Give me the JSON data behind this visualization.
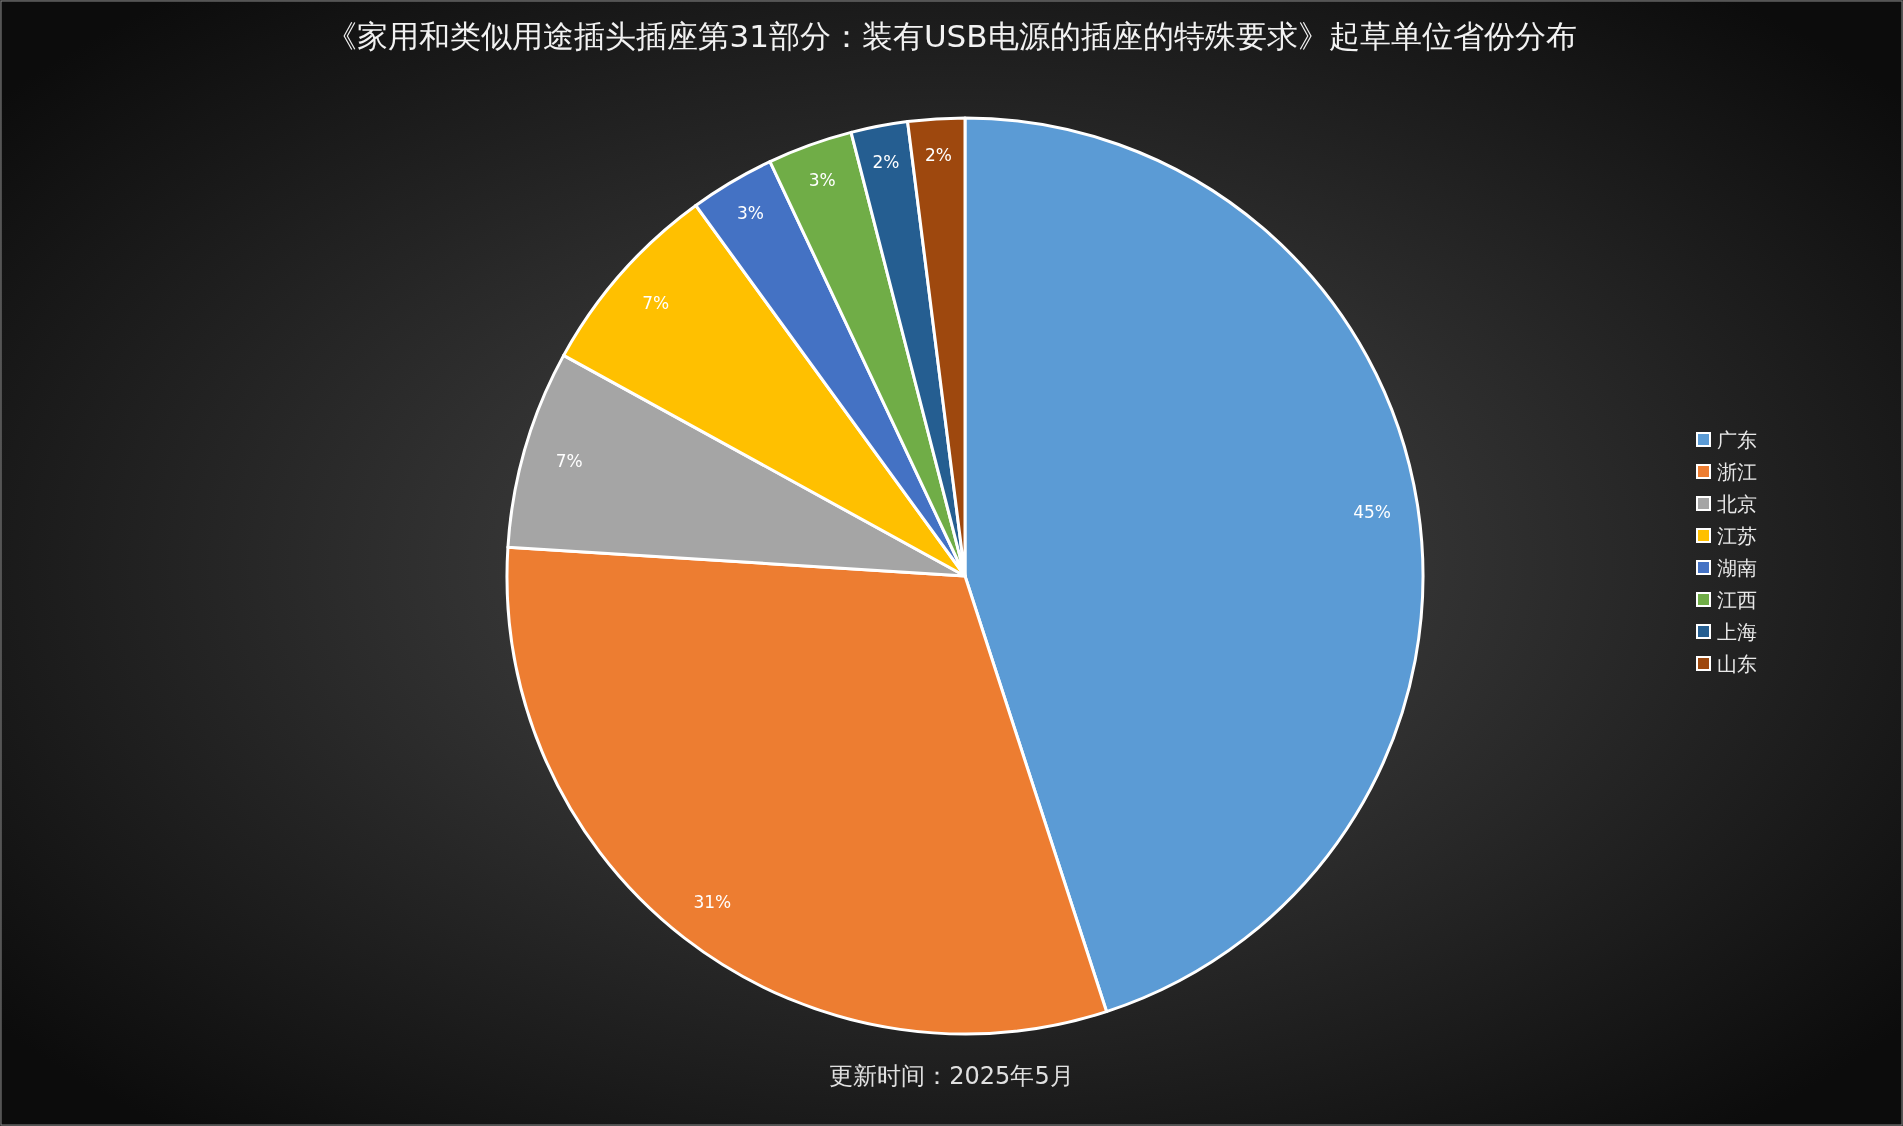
{
  "chart_data": {
    "type": "pie",
    "title": "《家用和类似用途插头插座第31部分：装有USB电源的插座的特殊要求》起草单位省份分布",
    "categories": [
      "广东",
      "浙江",
      "北京",
      "江苏",
      "湖南",
      "江西",
      "上海",
      "山东"
    ],
    "values": [
      45,
      31,
      7,
      7,
      3,
      3,
      2,
      2
    ],
    "colors": [
      "#5b9bd5",
      "#ed7d31",
      "#a5a5a5",
      "#ffc000",
      "#4472c4",
      "#70ad47",
      "#255e91",
      "#9e480e"
    ],
    "value_labels": [
      "45%",
      "31%",
      "7%",
      "7%",
      "3%",
      "3%",
      "2%",
      "2%"
    ],
    "legend": "right",
    "annotations": [
      "更新时间：2025年5月"
    ]
  }
}
